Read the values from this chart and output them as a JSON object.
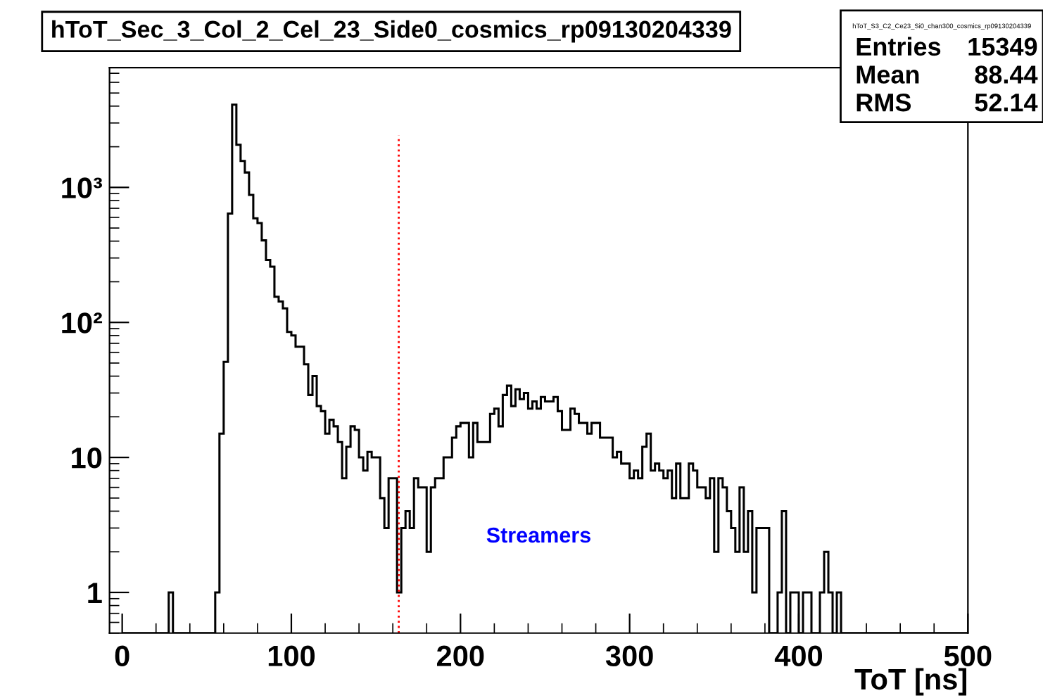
{
  "chart_data": {
    "type": "histogram",
    "title": "hToT_Sec_3_Col_2_Cel_23_Side0_cosmics_rp09130204339",
    "xlabel": "ToT [ns]",
    "bins": [
      0,
      2.5,
      5,
      7.5,
      10,
      12.5,
      15,
      17.5,
      20,
      22.5,
      25,
      27.5,
      30,
      32.5,
      35,
      37.5,
      40,
      42.5,
      45,
      47.5,
      50,
      52.5,
      55,
      57.5,
      60,
      62.5,
      65,
      67.5,
      70,
      72.5,
      75,
      77.5,
      80,
      82.5,
      85,
      87.5,
      90,
      92.5,
      95,
      97.5,
      100,
      102.5,
      105,
      107.5,
      110,
      112.5,
      115,
      117.5,
      120,
      122.5,
      125,
      127.5,
      130,
      132.5,
      135,
      137.5,
      140,
      142.5,
      145,
      147.5,
      150,
      152.5,
      155,
      157.5,
      160,
      162.5,
      165,
      167.5,
      170,
      172.5,
      175,
      177.5,
      180,
      182.5,
      185,
      187.5,
      190,
      192.5,
      195,
      197.5,
      200,
      202.5,
      205,
      207.5,
      210,
      212.5,
      215,
      217.5,
      220,
      222.5,
      225,
      227.5,
      230,
      232.5,
      235,
      237.5,
      240,
      242.5,
      245,
      247.5,
      250,
      252.5,
      255,
      257.5,
      260,
      262.5,
      265,
      267.5,
      270,
      272.5,
      275,
      277.5,
      280,
      282.5,
      285,
      287.5,
      290,
      292.5,
      295,
      297.5,
      300,
      302.5,
      305,
      307.5,
      310,
      312.5,
      315,
      317.5,
      320,
      322.5,
      325,
      327.5,
      330,
      332.5,
      335,
      337.5,
      340,
      342.5,
      345,
      347.5,
      350,
      352.5,
      355,
      357.5,
      360,
      362.5,
      365,
      367.5,
      370,
      372.5,
      375,
      377.5,
      380,
      382.5,
      385,
      387.5,
      390,
      392.5,
      395,
      397.5,
      400,
      402.5,
      405,
      407.5,
      410,
      412.5,
      415,
      417.5,
      420,
      422.5,
      425,
      427.5,
      430,
      432.5,
      435,
      437.5,
      440,
      442.5,
      445,
      447.5,
      450,
      452.5,
      455,
      457.5,
      460,
      462.5,
      465,
      467.5,
      470,
      472.5,
      475,
      477.5,
      480,
      482.5,
      485,
      487.5,
      490,
      492.5,
      495,
      497.5,
      500
    ],
    "values": [
      null,
      null,
      null,
      null,
      null,
      null,
      null,
      null,
      null,
      null,
      null,
      1,
      null,
      null,
      null,
      null,
      null,
      null,
      null,
      null,
      null,
      null,
      1,
      15,
      51,
      640,
      4100,
      2070,
      1570,
      1290,
      880,
      590,
      545,
      405,
      290,
      259,
      155,
      143,
      127,
      85,
      80,
      66,
      66,
      49,
      29,
      40,
      24,
      22,
      15,
      19,
      17,
      13,
      7,
      12,
      17,
      16,
      10,
      8,
      11,
      10,
      10,
      5,
      3,
      7,
      7,
      1,
      3,
      4,
      3,
      7,
      6,
      6,
      2,
      6,
      7,
      7,
      10,
      10,
      14,
      17,
      18,
      18,
      10,
      18,
      13,
      13,
      13,
      21,
      23,
      17,
      29,
      34,
      24,
      32,
      27,
      30,
      23,
      26,
      23,
      28,
      26,
      26,
      28,
      22,
      16,
      16,
      23,
      21,
      18,
      18,
      15,
      18,
      18,
      14,
      14,
      14,
      10,
      11,
      9,
      9,
      7,
      8,
      7,
      12,
      15,
      8,
      9,
      8,
      7,
      8,
      5,
      9,
      5,
      5,
      9,
      8,
      6,
      6,
      5,
      7,
      2,
      7,
      6,
      4,
      3,
      2,
      6,
      2,
      4,
      1,
      3,
      3,
      3,
      null,
      null,
      1,
      4,
      null,
      1,
      1,
      null,
      1,
      1,
      null,
      null,
      1,
      2,
      1,
      null,
      1,
      null,
      null,
      null,
      null,
      null,
      null,
      null,
      null,
      null,
      null,
      null,
      null,
      null,
      null,
      null,
      null,
      null,
      null,
      null,
      null,
      null,
      null,
      null,
      null,
      null,
      null,
      null,
      null,
      null,
      null
    ],
    "color": "#000000",
    "log": "y",
    "xlim": [
      -7.5,
      500
    ],
    "xticks": [
      0,
      100,
      200,
      300,
      400,
      500
    ],
    "ylim": [
      0.5,
      7700
    ],
    "yticks": [
      1,
      10,
      {
        "value": 100,
        "label": "10²"
      },
      {
        "value": 1000,
        "label": "10³"
      }
    ],
    "grid": false,
    "ref_lines": [
      {
        "axis": "x",
        "value": 163.5,
        "color": "#ff0000",
        "line_style": "dotted"
      }
    ],
    "annotations": [
      "hToT_S3_C2_Ce23_Si0_chan300_cosmics_rp09130204339",
      "Entries",
      "15349",
      "Mean",
      "88.44",
      "RMS",
      "52.14",
      "Streamers"
    ]
  }
}
